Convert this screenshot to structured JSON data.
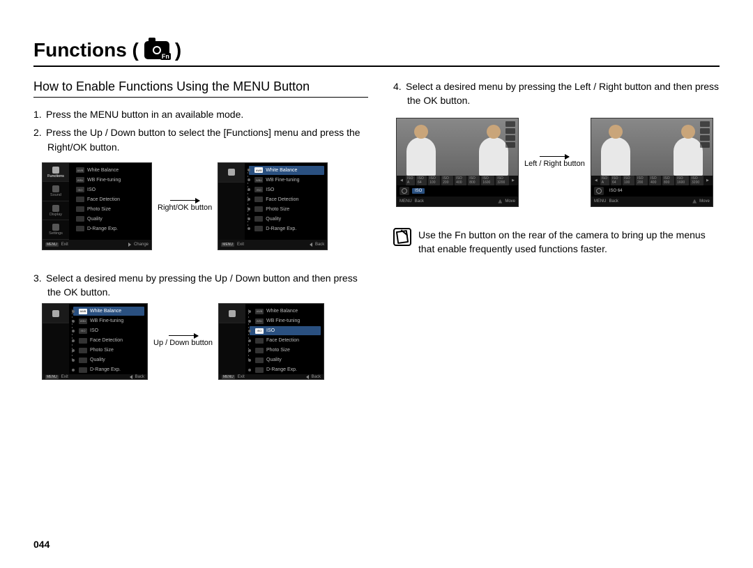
{
  "page": {
    "title_prefix": "Functions (",
    "title_suffix": ")",
    "icon_fn_label": "Fn",
    "number": "044"
  },
  "left": {
    "subhead": "How to Enable Functions Using the MENU Button",
    "step1": "Press the MENU button in an available mode.",
    "step2": "Press the Up / Down button to select the [Functions] menu and press the Right/OK button.",
    "step3": "Select a desired menu by pressing the Up / Down button and then press the OK button.",
    "arrow1": "Right/OK button",
    "arrow2": "Up / Down button"
  },
  "right": {
    "step4": "Select a desired menu by pressing the Left / Right button and then press the OK button.",
    "arrow": "Left / Right button",
    "note": "Use the Fn button on the rear of the camera to bring up the menus that enable frequently used functions faster."
  },
  "sidebar_items": [
    {
      "label": "Functions"
    },
    {
      "label": "Sound"
    },
    {
      "label": "Display"
    },
    {
      "label": "Settings"
    }
  ],
  "menu_items": [
    {
      "icon": "AWB",
      "label": "White Balance"
    },
    {
      "icon": "WB±",
      "label": "WB Fine-tuning"
    },
    {
      "icon": "ISO",
      "label": "ISO"
    },
    {
      "icon": "",
      "label": "Face Detection"
    },
    {
      "icon": "",
      "label": "Photo Size"
    },
    {
      "icon": "",
      "label": "Quality"
    },
    {
      "icon": "",
      "label": "D-Range Exp."
    }
  ],
  "footer_labels": {
    "menu_badge": "MENU",
    "exit": "Exit",
    "change": "Change",
    "back": "Back",
    "move": "Move"
  },
  "iso_strip": [
    "ISO A",
    "ISO 64",
    "ISO 100",
    "ISO 200",
    "ISO 400",
    "ISO 800",
    "ISO 1600",
    "ISO 3200"
  ],
  "photo_right": {
    "iso_label_a": "ISO",
    "iso_label_b": "ISO 64"
  }
}
